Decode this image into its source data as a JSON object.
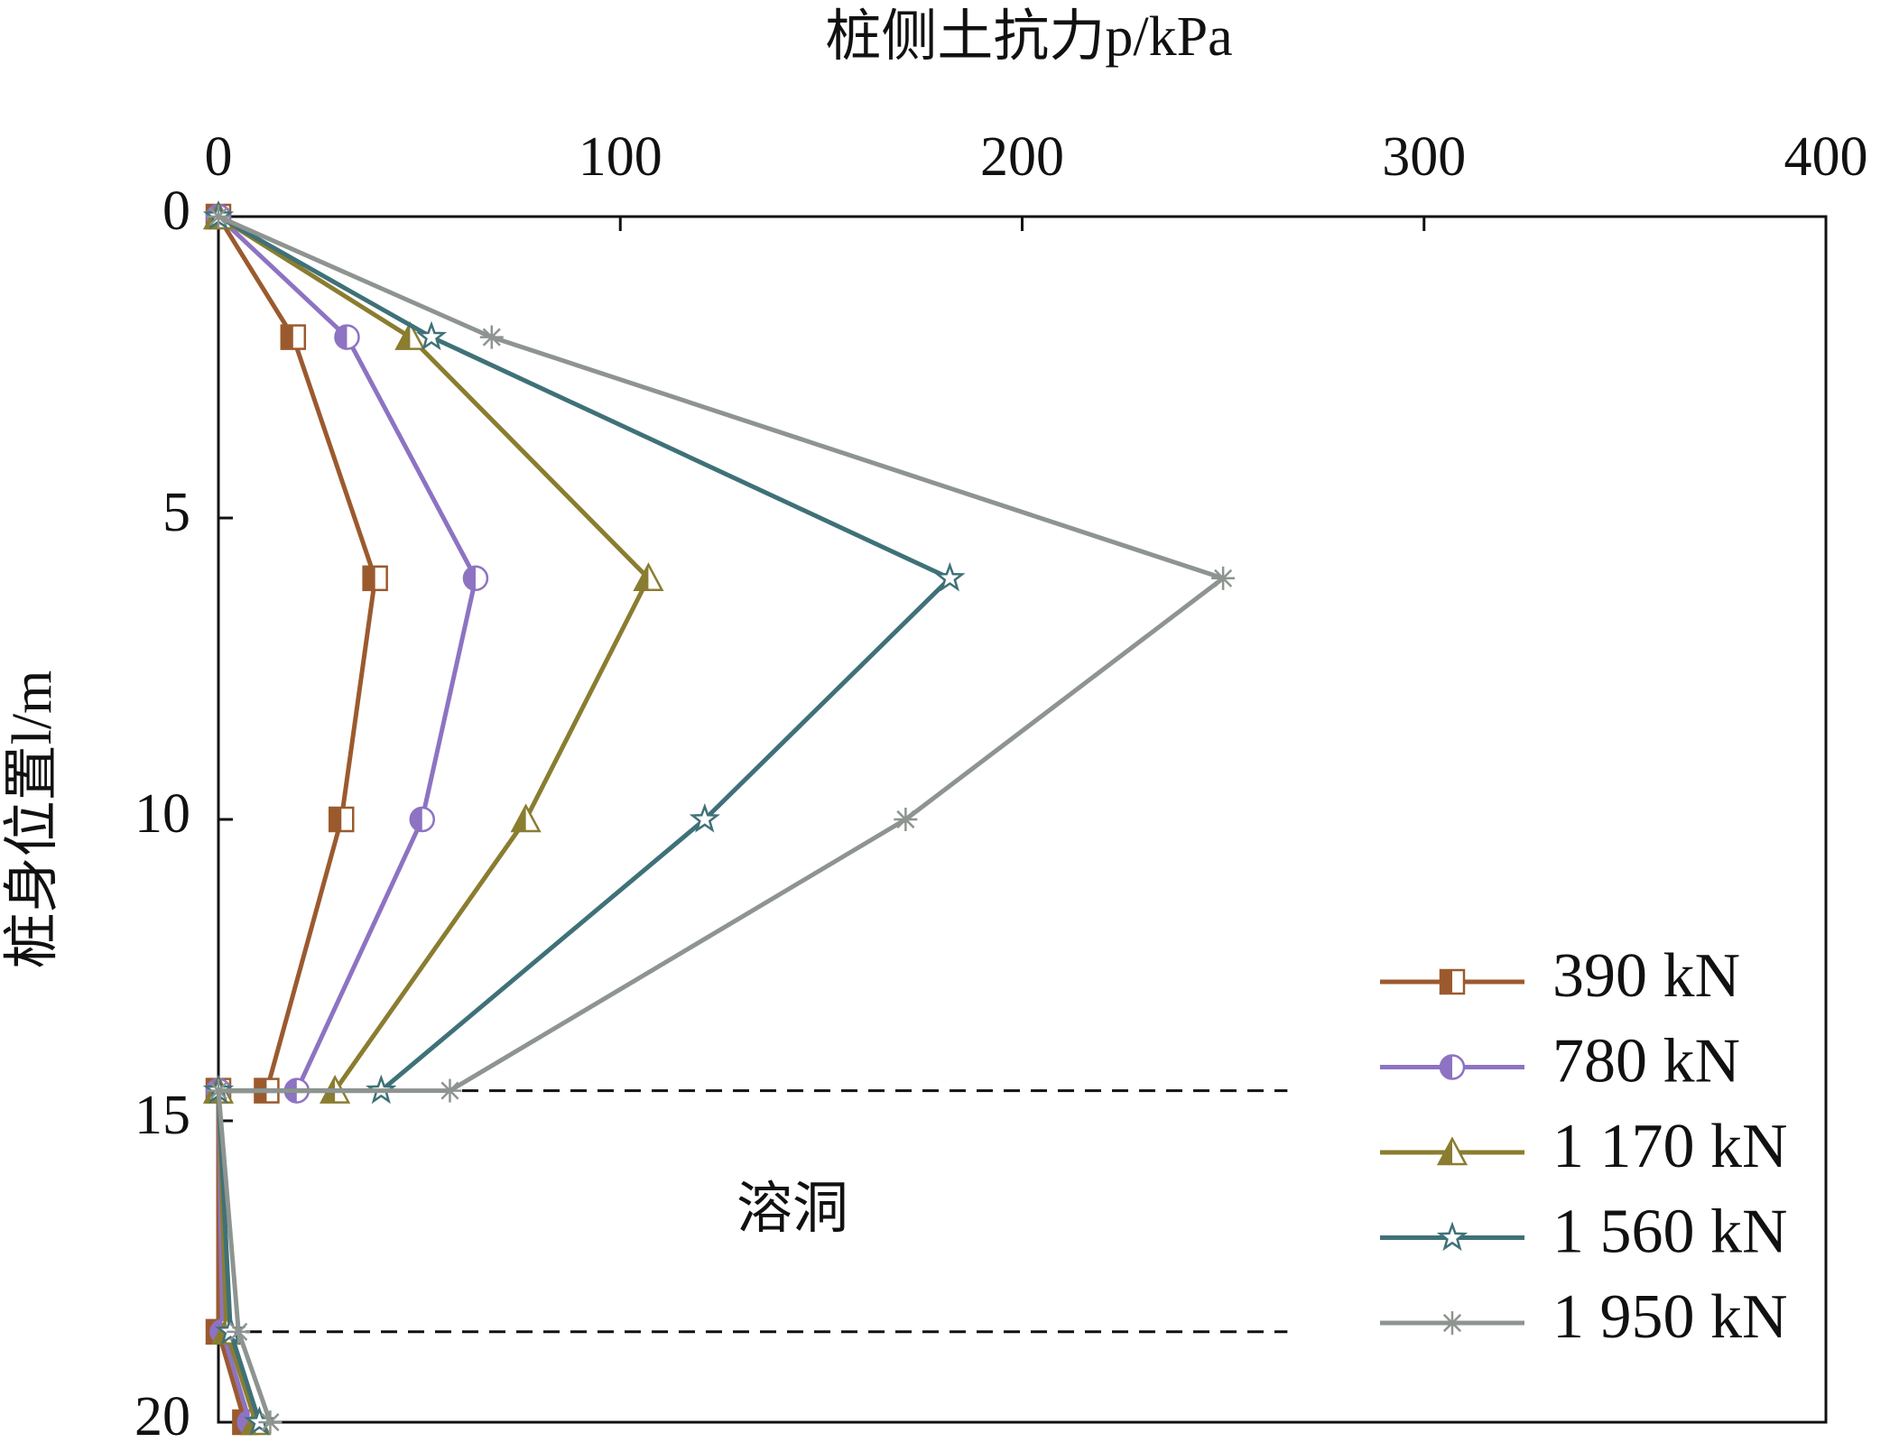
{
  "chart_data": {
    "type": "line",
    "orientation": "horizontal",
    "title": "桩侧土抗力p/kPa",
    "y_label": "桩身位置l/m",
    "annotation": "溶洞",
    "x": [
      0,
      2,
      6,
      10,
      14.5,
      14.5,
      18.5,
      20
    ],
    "xlim": [
      0,
      400
    ],
    "xticks": [
      0,
      100,
      200,
      300,
      400
    ],
    "ylim": [
      0,
      20
    ],
    "yticks": [
      0,
      5,
      10,
      15,
      20
    ],
    "y_inverted": true,
    "reference_lines": [
      14.5,
      18.5
    ],
    "legend": "lower right",
    "series": [
      {
        "name": "390 kN",
        "color": "#9b5a2e",
        "marker": "square",
        "values": [
          0,
          18.6,
          39,
          30.6,
          12,
          0,
          0,
          6.6
        ]
      },
      {
        "name": "780 kN",
        "color": "#8d73c2",
        "marker": "circle",
        "values": [
          0,
          32,
          64,
          50.7,
          19.5,
          0,
          1,
          7.8
        ]
      },
      {
        "name": "1 170 kN",
        "color": "#8a7d30",
        "marker": "triangle",
        "values": [
          0,
          47.7,
          107,
          76.5,
          29,
          0,
          2,
          9.3
        ]
      },
      {
        "name": "1 560 kN",
        "color": "#3f7178",
        "marker": "star",
        "values": [
          0,
          53,
          182,
          121,
          40.5,
          0,
          3,
          10.2
        ]
      },
      {
        "name": "1 950 kN",
        "color": "#8e9490",
        "marker": "asterisk",
        "values": [
          0,
          68,
          250,
          171,
          57.6,
          0,
          5,
          12.9
        ]
      }
    ]
  }
}
